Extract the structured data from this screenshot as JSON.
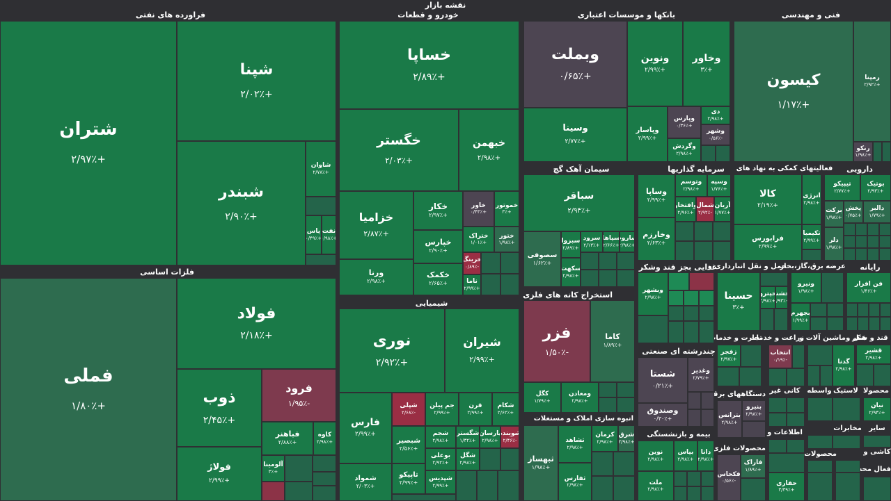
{
  "title": "نقشه بازار",
  "sectors": {
    "oil": "فراورده های نفتی",
    "auto": "خودرو و قطعات",
    "banks": "بانکها و موسسات اعتباری",
    "tech": "فنی و مهندسی",
    "metals": "فلزات اساسی",
    "cement": "سیمان آهک گچ",
    "investment": "سرمایه گذاریها",
    "support": "فعالیتهای کمکی به نهاد های",
    "pharma": "دارویی",
    "chem": "شیمیایی",
    "mining": "استخراج کانه های فلزی",
    "food": "غذایی بجز قند وشکر",
    "transport": "حمل و نقل انبارداری و",
    "utility": "عرضه برق،گاز،بخار",
    "it": "رایانه",
    "multi": "چندرشته ای صنعتی",
    "trade": "تجارت و خدمات",
    "agri": "زراعت و خدمات",
    "machine": "ماشین آلات و",
    "hotel": "هتل و",
    "sugar": "قند و شکر",
    "realestate": "انبوه سازی املاک و مستغلات",
    "insurance": "بیمه و بازنشستگی",
    "appliances": "دستگاههای برقی",
    "mineral": "کانی غیر",
    "wholesale": "واسطه",
    "rubber": "لاستیک",
    "products": "محصولا",
    "fabmetal": "محصولات فلزی",
    "telecom": "اطلاعات و",
    "other": "سایر",
    "comms": "مخابرات",
    "paper": "محصولات",
    "tile": "کاشی و",
    "misc": "فعال محه"
  },
  "tiles": {
    "shetran": {
      "sym": "شتران",
      "chg": "+۲/۹۷٪"
    },
    "shapna": {
      "sym": "شپنا",
      "chg": "+۲/۰۲٪"
    },
    "shabandar": {
      "sym": "شبندر",
      "chg": "+۲/۹۰٪"
    },
    "shavan": {
      "sym": "شاوان",
      "chg": "+۲/۷۸٪"
    },
    "sinaft": {
      "sym": "نفت",
      "chg": "+۰/۹۸٪"
    },
    "shpas": {
      "sym": "پاس",
      "chg": "+۰/۴۹٪"
    },
    "khsapa": {
      "sym": "خساپا",
      "chg": "+۲/۸۹٪"
    },
    "khgostar": {
      "sym": "خگستر",
      "chg": "+۲/۰۳٪"
    },
    "khbahman": {
      "sym": "خبهمن",
      "chg": "+۲/۹۸٪"
    },
    "khzamia": {
      "sym": "خزامیا",
      "chg": "+۲/۸۷٪"
    },
    "khkar": {
      "sym": "خکار",
      "chg": "+۲/۹۷٪"
    },
    "khavar": {
      "sym": "خاور",
      "chg": "+۰/۴۳٪"
    },
    "khmotor": {
      "sym": "خموتور",
      "chg": "+۳٪"
    },
    "khpars": {
      "sym": "خپارس",
      "chg": "+۲/۹۰٪"
    },
    "khtrak": {
      "sym": "ختراک",
      "chg": "+۱/۰۱٪"
    },
    "khnor": {
      "sym": "ختور",
      "chg": "+۱/۹۸٪"
    },
    "vorna": {
      "sym": "ورنا",
      "chg": "+۲/۹۸٪"
    },
    "khkmak": {
      "sym": "خکمک",
      "chg": "+۲/۶۵٪"
    },
    "khring": {
      "sym": "خرینگ",
      "chg": "-۰/۸۹٪"
    },
    "nama": {
      "sym": "ناما",
      "chg": "+۲/۹۹٪"
    },
    "vbmellat": {
      "sym": "وبملت",
      "chg": "+۰/۶۵٪"
    },
    "vnovin": {
      "sym": "ونوین",
      "chg": "+۲/۹۹٪"
    },
    "vkhavar": {
      "sym": "وخاور",
      "chg": "+۳٪"
    },
    "vsina": {
      "sym": "وسینا",
      "chg": "+۲/۷۷٪"
    },
    "vpasar": {
      "sym": "وپاسار",
      "chg": "+۲/۹۹٪"
    },
    "vpars": {
      "sym": "وپارس",
      "chg": "+۰/۳۶٪"
    },
    "di": {
      "sym": "دی",
      "chg": "+۲/۹۸٪"
    },
    "vshahr": {
      "sym": "وشهر",
      "chg": "-۰/۵۶٪"
    },
    "vgardesh": {
      "sym": "وگردش",
      "chg": "+۲/۹۸٪"
    },
    "kayson": {
      "sym": "کیسون",
      "chg": "+۱/۱۷٪"
    },
    "ramapna": {
      "sym": "رمپنا",
      "chg": "+۲/۹۲٪"
    },
    "rankou": {
      "sym": "رنکو",
      "chg": "+۱/۹۸٪"
    },
    "fameli": {
      "sym": "فملی",
      "chg": "+۱/۸۰٪"
    },
    "foolad": {
      "sym": "فولاد",
      "chg": "+۲/۱۸٪"
    },
    "zob": {
      "sym": "ذوب",
      "chg": "+۲/۴۵٪"
    },
    "foroud": {
      "sym": "فرود",
      "chg": "-۱/۹۵٪"
    },
    "fbahonar": {
      "sym": "فباهنر",
      "chg": "+۲/۸۸٪"
    },
    "kaveh": {
      "sym": "کاوه",
      "chg": "+۲/۹۸٪"
    },
    "folaj": {
      "sym": "فولاژ",
      "chg": "+۲/۹۹٪"
    },
    "aluminia": {
      "sym": "آلومینا",
      "chg": "+۳٪"
    },
    "sabaqer": {
      "sym": "سباقر",
      "chg": "+۲/۹۴٪"
    },
    "sesufi": {
      "sym": "سصوفی",
      "chg": "+۱/۶۲٪"
    },
    "sabzva": {
      "sym": "سبزوا",
      "chg": "+۲/۸۹٪"
    },
    "sarod": {
      "sym": "سرود",
      "chg": "+۲/۱۳٪"
    },
    "sepaha": {
      "sym": "سپاها",
      "chg": "+۲/۶۶٪"
    },
    "sarum": {
      "sym": "ساروم",
      "chg": "+۲/۹۸٪"
    },
    "sekhat": {
      "sym": "سکهت",
      "chg": "+۲/۹۸٪"
    },
    "vsapa": {
      "sym": "وساپا",
      "chg": "+۲/۹۹٪"
    },
    "vtosam": {
      "sym": "وتوسم",
      "chg": "+۲/۹۸٪"
    },
    "vseph": {
      "sym": "وسپه",
      "chg": "+۱/۷۶٪"
    },
    "vafter": {
      "sym": "وافتخار",
      "chg": "+۲/۹۶٪"
    },
    "shamal": {
      "sym": "شمال",
      "chg": "-۲/۹۲٪"
    },
    "arian": {
      "sym": "آریان",
      "chg": "+۱/۷۷٪"
    },
    "vkharzam": {
      "sym": "وخارزم",
      "chg": "+۲/۶۳٪"
    },
    "kala": {
      "sym": "کالا",
      "chg": "+۲/۱۹٪"
    },
    "anrji": {
      "sym": "انرژی",
      "chg": "+۲/۹۸٪"
    },
    "faraburs": {
      "sym": "فرابورس",
      "chg": "+۲/۹۹٪"
    },
    "tkiko": {
      "sym": "تیپیکو",
      "chg": "+۲/۷۷٪"
    },
    "botik": {
      "sym": "بوتیک",
      "chg": "+۲/۹۳٪"
    },
    "barkat": {
      "sym": "برکت",
      "chg": "+۱/۹۸٪"
    },
    "pakhsh": {
      "sym": "پخش",
      "chg": "+۰/۷۵٪"
    },
    "dalbor": {
      "sym": "دالبر",
      "chg": "+۱/۷۹٪"
    },
    "dtkimia": {
      "sym": "تکیمیا",
      "chg": "+۲/۹۹٪"
    },
    "dlar": {
      "sym": "دلر",
      "chg": "+۱/۹۸٪"
    },
    "noori": {
      "sym": "نوری",
      "chg": "+۲/۹۲٪"
    },
    "shiran": {
      "sym": "شیران",
      "chg": "+۲/۹۹٪"
    },
    "fars": {
      "sym": "فارس",
      "chg": "+۲/۹۹٪"
    },
    "shepli": {
      "sym": "شپلی",
      "chg": "-۲/۶۸٪"
    },
    "jampilan": {
      "sym": "جم پیلن",
      "chg": "+۲/۹۹٪"
    },
    "gharn": {
      "sym": "قرن",
      "chg": "+۲/۹۹٪"
    },
    "shekam": {
      "sym": "شکام",
      "chg": "+۲/۶۲٪"
    },
    "shbasir": {
      "sym": "شبصیر",
      "chg": "+۲/۵۶٪"
    },
    "shajam": {
      "sym": "شجم",
      "chg": "+۲/۹۸٪"
    },
    "shgostar": {
      "sym": "شگستر",
      "chg": "+۱/۳۲٪"
    },
    "parsan": {
      "sym": "پارسان",
      "chg": "+۲/۹۸٪"
    },
    "shavinde": {
      "sym": "شوینده",
      "chg": "-۲/۴۶٪"
    },
    "booali": {
      "sym": "بوعلی",
      "chg": "+۲/۹۲٪"
    },
    "shegol": {
      "sym": "شگل",
      "chg": "+۲/۹۸٪"
    },
    "shamvad": {
      "sym": "شموا‌د",
      "chg": "+۲/۰۳٪"
    },
    "tapiko": {
      "sym": "تاپیکو",
      "chg": "+۲/۹۹٪"
    },
    "shpadis": {
      "sym": "شپدیس",
      "chg": "+۲/۹۹٪"
    },
    "fazar": {
      "sym": "فزر",
      "chg": "-۱/۵۰٪"
    },
    "kama": {
      "sym": "کاما",
      "chg": "+۱/۸۹٪"
    },
    "kegol": {
      "sym": "کگل",
      "chg": "+۱/۷۹٪"
    },
    "vmaaden": {
      "sym": "ومعادن",
      "chg": "+۲/۹۸٪"
    },
    "veshahr": {
      "sym": "وبشهر",
      "chg": "+۲/۹۸٪"
    },
    "hesina": {
      "sym": "حسینا",
      "chg": "+۳٪"
    },
    "hpetro": {
      "sym": "حپترو",
      "chg": "+۲/۹۸٪"
    },
    "heshna": {
      "sym": "حشنا",
      "chg": "+۲/۹۳٪"
    },
    "vaniro": {
      "sym": "ونیرو",
      "chg": "+۱/۹۸٪"
    },
    "bjahrom": {
      "sym": "بجهرم",
      "chg": "+۱/۹۹٪"
    },
    "fanafzar": {
      "sym": "فن افزار",
      "chg": "+۱/۴۶٪"
    },
    "shasta": {
      "sym": "شستا",
      "chg": "+۰/۲۱٪"
    },
    "vghadir": {
      "sym": "وغدیر",
      "chg": "+۲/۷۹٪"
    },
    "vsandogh": {
      "sym": "وصندوق",
      "chg": "+۰/۳۰٪"
    },
    "zfajr": {
      "sym": "زفجر",
      "chg": "+۲/۹۷٪"
    },
    "entekhab": {
      "sym": "انتخاب",
      "chg": "-۰/۱۹٪"
    },
    "ghashir": {
      "sym": "قشیر",
      "chg": "+۲/۹۸٪"
    },
    "gadna": {
      "sym": "گدنا",
      "chg": "+۲/۹۸٪"
    },
    "betranas": {
      "sym": "بترانس",
      "chg": "+۲/۹۸٪"
    },
    "boniro": {
      "sym": "بنیرو",
      "chg": "+۲/۹۸٪"
    },
    "fakhaas": {
      "sym": "فکحاس",
      "chg": "-۰/۵۶٪"
    },
    "faraak": {
      "sym": "فاراک",
      "chg": "+۱/۸۹٪"
    },
    "hafari": {
      "sym": "حفاری",
      "chg": "+۳/۳۹٪"
    },
    "neyan": {
      "sym": "نیان",
      "chg": "+۲/۹۴٪"
    },
    "hekasb": {
      "sym": "ثشاهد",
      "chg": "+۲/۹۸٪"
    },
    "kerman": {
      "sym": "کرمان",
      "chg": "+۲/۹۸٪"
    },
    "sharq": {
      "sym": "شرق",
      "chg": "+۲/۹۸٪"
    },
    "tbahsaz": {
      "sym": "ثبهساز",
      "chg": "+۱/۹۸٪"
    },
    "tafars": {
      "sym": "ثفارس",
      "chg": "+۲/۹۸٪"
    },
    "novin": {
      "sym": "نوین",
      "chg": "+۲/۹۸٪"
    },
    "bayas": {
      "sym": "بپاس",
      "chg": "+۲/۹۸٪"
    },
    "dana": {
      "sym": "دانا",
      "chg": "+۲/۹۸٪"
    },
    "mellat": {
      "sym": "ملت",
      "chg": "+۲/۹۸٪"
    }
  }
}
